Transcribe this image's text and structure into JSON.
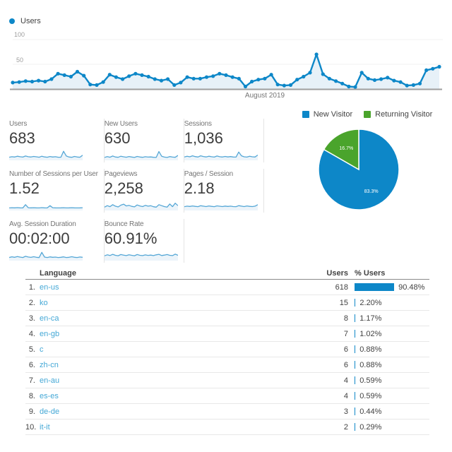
{
  "colors": {
    "primary_blue": "#0d87c8",
    "green": "#4aa42c",
    "sparkline_blue": "#55a7d6",
    "sparkline_fill": "#ecf4fa",
    "area_fill": "#e7f1f8",
    "baseline_gray": "#9e9e9e",
    "gridline": "#f0f0f0",
    "link_blue": "#44a8d6"
  },
  "chart_data": [
    {
      "id": "users-timeseries",
      "type": "line",
      "series": [
        {
          "name": "Users",
          "values": [
            13,
            14,
            16,
            15,
            17,
            15,
            20,
            31,
            28,
            25,
            35,
            27,
            9,
            8,
            14,
            29,
            24,
            20,
            26,
            31,
            28,
            25,
            20,
            17,
            20,
            8,
            13,
            24,
            21,
            21,
            24,
            26,
            31,
            28,
            24,
            21,
            5,
            15,
            19,
            21,
            29,
            9,
            7,
            8,
            19,
            25,
            33,
            70,
            30,
            21,
            16,
            11,
            5,
            4,
            33,
            21,
            18,
            20,
            23,
            17,
            14,
            7,
            8,
            11,
            38,
            41,
            45
          ]
        }
      ],
      "x_axis_label": "August 2019",
      "y_ticks": [
        "100",
        "50"
      ],
      "ylim": [
        0,
        100
      ],
      "legend_position": "top-left",
      "grid": "horizontal-light"
    },
    {
      "id": "visitor-type-pie",
      "type": "pie",
      "slices": [
        {
          "label": "New Visitor",
          "value": 83.3,
          "display": "83.3%",
          "color": "#0d87c8"
        },
        {
          "label": "Returning Visitor",
          "value": 16.7,
          "display": "16.7%",
          "color": "#4aa42c"
        }
      ],
      "legend_position": "top"
    }
  ],
  "scorecards": [
    {
      "label": "Users",
      "value": "683",
      "spark": [
        0.28,
        0.33,
        0.3,
        0.38,
        0.33,
        0.29,
        0.4,
        0.33,
        0.3,
        0.36,
        0.32,
        0.28,
        0.38,
        0.31,
        0.28,
        0.35,
        0.3,
        0.33,
        0.28,
        0.28,
        0.88,
        0.4,
        0.3,
        0.27,
        0.36,
        0.3,
        0.28,
        0.48
      ]
    },
    {
      "label": "New Users",
      "value": "630",
      "spark": [
        0.26,
        0.34,
        0.28,
        0.4,
        0.3,
        0.27,
        0.38,
        0.32,
        0.28,
        0.35,
        0.3,
        0.26,
        0.36,
        0.3,
        0.27,
        0.33,
        0.29,
        0.31,
        0.27,
        0.26,
        0.85,
        0.38,
        0.29,
        0.26,
        0.34,
        0.29,
        0.27,
        0.46
      ]
    },
    {
      "label": "Sessions",
      "value": "1,036",
      "spark": [
        0.3,
        0.38,
        0.32,
        0.42,
        0.34,
        0.3,
        0.42,
        0.35,
        0.31,
        0.38,
        0.33,
        0.29,
        0.4,
        0.33,
        0.3,
        0.36,
        0.31,
        0.34,
        0.3,
        0.29,
        0.8,
        0.42,
        0.32,
        0.29,
        0.38,
        0.32,
        0.3,
        0.5
      ]
    },
    {
      "label": "Number of Sessions per User",
      "value": "1.52",
      "spark": [
        0.22,
        0.24,
        0.23,
        0.25,
        0.23,
        0.22,
        0.55,
        0.24,
        0.23,
        0.24,
        0.23,
        0.22,
        0.25,
        0.23,
        0.22,
        0.45,
        0.24,
        0.23,
        0.22,
        0.23,
        0.24,
        0.22,
        0.23,
        0.24,
        0.23,
        0.22,
        0.23,
        0.24
      ]
    },
    {
      "label": "Pageviews",
      "value": "2,258",
      "spark": [
        0.3,
        0.45,
        0.35,
        0.55,
        0.4,
        0.32,
        0.5,
        0.6,
        0.42,
        0.48,
        0.38,
        0.33,
        0.52,
        0.42,
        0.36,
        0.48,
        0.4,
        0.44,
        0.34,
        0.3,
        0.55,
        0.45,
        0.36,
        0.3,
        0.62,
        0.35,
        0.7,
        0.45
      ]
    },
    {
      "label": "Pages / Session",
      "value": "2.18",
      "spark": [
        0.35,
        0.4,
        0.37,
        0.42,
        0.38,
        0.35,
        0.44,
        0.4,
        0.36,
        0.42,
        0.38,
        0.35,
        0.43,
        0.39,
        0.36,
        0.41,
        0.37,
        0.4,
        0.36,
        0.35,
        0.45,
        0.4,
        0.36,
        0.42,
        0.38,
        0.36,
        0.4,
        0.55
      ]
    },
    {
      "label": "Avg. Session Duration",
      "value": "00:02:00",
      "spark": [
        0.28,
        0.35,
        0.3,
        0.38,
        0.32,
        0.28,
        0.4,
        0.33,
        0.29,
        0.36,
        0.3,
        0.27,
        0.8,
        0.32,
        0.28,
        0.34,
        0.3,
        0.32,
        0.28,
        0.3,
        0.34,
        0.28,
        0.3,
        0.36,
        0.3,
        0.28,
        0.33,
        0.3
      ]
    },
    {
      "label": "Bounce Rate",
      "value": "60.91%",
      "spark": [
        0.45,
        0.55,
        0.48,
        0.6,
        0.5,
        0.46,
        0.58,
        0.52,
        0.47,
        0.56,
        0.5,
        0.46,
        0.58,
        0.5,
        0.47,
        0.54,
        0.49,
        0.52,
        0.47,
        0.55,
        0.6,
        0.48,
        0.52,
        0.58,
        0.5,
        0.47,
        0.62,
        0.5
      ]
    }
  ],
  "visitor_pie": {
    "legend": [
      {
        "label": "New Visitor",
        "color": "#0d87c8"
      },
      {
        "label": "Returning Visitor",
        "color": "#4aa42c"
      }
    ]
  },
  "language_table": {
    "headers": {
      "language": "Language",
      "users": "Users",
      "pct_users": "% Users"
    },
    "rows": [
      {
        "rank": "1.",
        "language": "en-us",
        "users": "618",
        "pct": "90.48%",
        "pct_value": 90.48
      },
      {
        "rank": "2.",
        "language": "ko",
        "users": "15",
        "pct": "2.20%",
        "pct_value": 2.2
      },
      {
        "rank": "3.",
        "language": "en-ca",
        "users": "8",
        "pct": "1.17%",
        "pct_value": 1.17
      },
      {
        "rank": "4.",
        "language": "en-gb",
        "users": "7",
        "pct": "1.02%",
        "pct_value": 1.02
      },
      {
        "rank": "5.",
        "language": "c",
        "users": "6",
        "pct": "0.88%",
        "pct_value": 0.88
      },
      {
        "rank": "6.",
        "language": "zh-cn",
        "users": "6",
        "pct": "0.88%",
        "pct_value": 0.88
      },
      {
        "rank": "7.",
        "language": "en-au",
        "users": "4",
        "pct": "0.59%",
        "pct_value": 0.59
      },
      {
        "rank": "8.",
        "language": "es-es",
        "users": "4",
        "pct": "0.59%",
        "pct_value": 0.59
      },
      {
        "rank": "9.",
        "language": "de-de",
        "users": "3",
        "pct": "0.44%",
        "pct_value": 0.44
      },
      {
        "rank": "10.",
        "language": "it-it",
        "users": "2",
        "pct": "0.29%",
        "pct_value": 0.29
      }
    ]
  }
}
